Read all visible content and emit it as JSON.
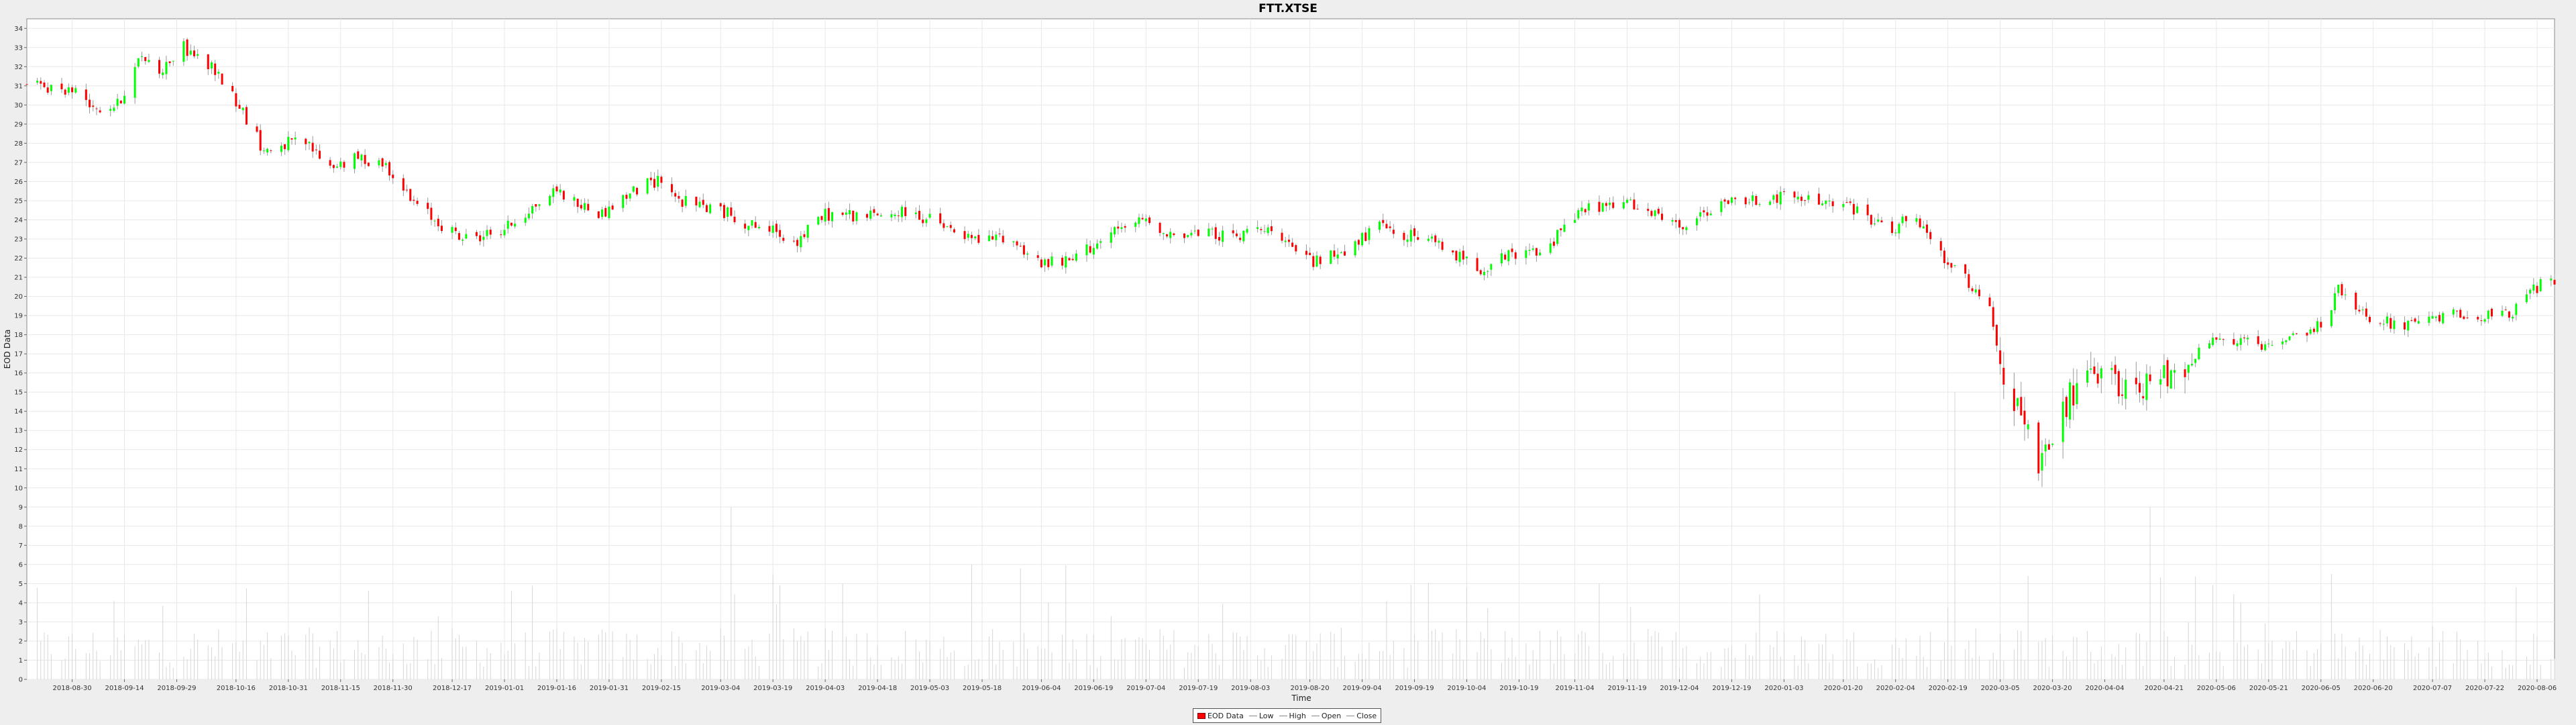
{
  "chart_data": {
    "type": "candlestick",
    "title": "FTT.XTSE",
    "xlabel": "Time",
    "ylabel": "EOD Data",
    "ylim": [
      0,
      34.5
    ],
    "yticks": [
      0,
      1,
      2,
      3,
      4,
      5,
      6,
      7,
      8,
      9,
      10,
      11,
      12,
      13,
      14,
      15,
      16,
      17,
      18,
      19,
      20,
      21,
      22,
      23,
      24,
      25,
      26,
      27,
      28,
      29,
      30,
      31,
      32,
      33,
      34
    ],
    "x_start": "2018-08-17",
    "x_end": "2020-08-11",
    "x_ticks": [
      "2018-08-30",
      "2018-09-14",
      "2018-09-29",
      "2018-10-16",
      "2018-10-31",
      "2018-11-15",
      "2018-11-30",
      "2018-12-17",
      "2019-01-01",
      "2019-01-16",
      "2019-01-31",
      "2019-02-15",
      "2019-03-04",
      "2019-03-19",
      "2019-04-03",
      "2019-04-18",
      "2019-05-03",
      "2019-05-18",
      "2019-06-04",
      "2019-06-19",
      "2019-07-04",
      "2019-07-19",
      "2019-08-03",
      "2019-08-20",
      "2019-09-04",
      "2019-09-19",
      "2019-10-04",
      "2019-10-19",
      "2019-11-04",
      "2019-11-19",
      "2019-12-04",
      "2019-12-19",
      "2020-01-03",
      "2020-01-20",
      "2020-02-04",
      "2020-02-19",
      "2020-03-05",
      "2020-03-20",
      "2020-04-04",
      "2020-04-21",
      "2020-05-06",
      "2020-05-21",
      "2020-06-05",
      "2020-06-20",
      "2020-07-07",
      "2020-07-22",
      "2020-08-06"
    ],
    "close_trend": [
      [
        "2018-08-17",
        31.0
      ],
      [
        "2018-08-30",
        30.8
      ],
      [
        "2018-09-07",
        29.8
      ],
      [
        "2018-09-12",
        30.0
      ],
      [
        "2018-09-19",
        32.6
      ],
      [
        "2018-09-24",
        31.8
      ],
      [
        "2018-10-01",
        33.0
      ],
      [
        "2018-10-10",
        31.8
      ],
      [
        "2018-10-17",
        30.0
      ],
      [
        "2018-10-24",
        27.6
      ],
      [
        "2018-10-31",
        28.0
      ],
      [
        "2018-11-05",
        28.0
      ],
      [
        "2018-11-12",
        26.8
      ],
      [
        "2018-11-20",
        27.2
      ],
      [
        "2018-11-27",
        27.0
      ],
      [
        "2018-11-30",
        26.5
      ],
      [
        "2018-12-05",
        25.0
      ],
      [
        "2018-12-12",
        24.0
      ],
      [
        "2018-12-20",
        23.0
      ],
      [
        "2018-12-31",
        23.4
      ],
      [
        "2019-01-08",
        24.5
      ],
      [
        "2019-01-16",
        25.6
      ],
      [
        "2019-01-22",
        24.8
      ],
      [
        "2019-01-29",
        24.3
      ],
      [
        "2019-02-06",
        25.4
      ],
      [
        "2019-02-15",
        26.2
      ],
      [
        "2019-02-20",
        25.0
      ],
      [
        "2019-03-04",
        24.5
      ],
      [
        "2019-03-12",
        23.8
      ],
      [
        "2019-03-19",
        23.4
      ],
      [
        "2019-03-26",
        22.9
      ],
      [
        "2019-04-03",
        24.3
      ],
      [
        "2019-04-18",
        24.2
      ],
      [
        "2019-04-26",
        24.4
      ],
      [
        "2019-05-03",
        24.0
      ],
      [
        "2019-05-10",
        23.3
      ],
      [
        "2019-05-18",
        22.8
      ],
      [
        "2019-05-25",
        23.2
      ],
      [
        "2019-06-04",
        21.7
      ],
      [
        "2019-06-12",
        21.8
      ],
      [
        "2019-06-19",
        22.7
      ],
      [
        "2019-06-28",
        23.6
      ],
      [
        "2019-07-04",
        24.0
      ],
      [
        "2019-07-12",
        23.2
      ],
      [
        "2019-07-24",
        23.3
      ],
      [
        "2019-07-30",
        23.0
      ],
      [
        "2019-08-06",
        23.8
      ],
      [
        "2019-08-14",
        22.5
      ],
      [
        "2019-08-22",
        21.8
      ],
      [
        "2019-09-01",
        22.6
      ],
      [
        "2019-09-08",
        23.6
      ],
      [
        "2019-09-15",
        23.3
      ],
      [
        "2019-09-22",
        23.0
      ],
      [
        "2019-10-01",
        22.2
      ],
      [
        "2019-10-08",
        21.5
      ],
      [
        "2019-10-19",
        22.3
      ],
      [
        "2019-10-27",
        22.2
      ],
      [
        "2019-11-01",
        24.0
      ],
      [
        "2019-11-08",
        24.6
      ],
      [
        "2019-11-19",
        24.8
      ],
      [
        "2019-12-04",
        23.6
      ],
      [
        "2019-12-19",
        25.0
      ],
      [
        "2020-01-03",
        25.2
      ],
      [
        "2020-01-20",
        24.8
      ],
      [
        "2020-01-28",
        24.0
      ],
      [
        "2020-02-04",
        23.5
      ],
      [
        "2020-02-08",
        24.2
      ],
      [
        "2020-02-12",
        23.4
      ],
      [
        "2020-02-19",
        21.8
      ],
      [
        "2020-02-26",
        20.5
      ],
      [
        "2020-03-02",
        19.5
      ],
      [
        "2020-03-06",
        15.8
      ],
      [
        "2020-03-11",
        13.5
      ],
      [
        "2020-03-17",
        11.0
      ],
      [
        "2020-03-25",
        14.8
      ],
      [
        "2020-04-01",
        15.5
      ],
      [
        "2020-04-07",
        15.7
      ],
      [
        "2020-04-14",
        15.0
      ],
      [
        "2020-04-21",
        15.9
      ],
      [
        "2020-04-28",
        16.8
      ],
      [
        "2020-05-06",
        17.8
      ],
      [
        "2020-05-13",
        17.6
      ],
      [
        "2020-05-21",
        17.2
      ],
      [
        "2020-05-28",
        17.8
      ],
      [
        "2020-06-05",
        18.6
      ],
      [
        "2020-06-10",
        20.3
      ],
      [
        "2020-06-16",
        19.2
      ],
      [
        "2020-06-25",
        18.6
      ],
      [
        "2020-07-02",
        18.5
      ],
      [
        "2020-07-08",
        18.7
      ],
      [
        "2020-07-15",
        19.2
      ],
      [
        "2020-07-22",
        18.9
      ],
      [
        "2020-07-29",
        19.0
      ],
      [
        "2020-08-04",
        20.2
      ],
      [
        "2020-08-08",
        20.8
      ],
      [
        "2020-08-11",
        20.6
      ]
    ],
    "volume_scale_max": 34.5,
    "volume_spikes": [
      [
        "2019-03-07",
        9.0
      ],
      [
        "2019-03-19",
        5.5
      ],
      [
        "2019-05-15",
        6.0
      ],
      [
        "2019-05-29",
        5.8
      ],
      [
        "2019-06-06",
        4.0
      ],
      [
        "2020-02-21",
        15.0
      ],
      [
        "2020-03-14",
        4.0
      ],
      [
        "2020-04-17",
        9.0
      ],
      [
        "2020-06-08",
        5.5
      ]
    ],
    "volume_typical": 1.5,
    "colors": {
      "up": "#00ff00",
      "down": "#ff0000",
      "volume": "#d6d6d6",
      "grid": "#e8e8e8",
      "plot_bg": "#ffffff"
    },
    "legend": {
      "placement": "bottom-center",
      "items": [
        "EOD Data",
        "Low",
        "High",
        "Open",
        "Close"
      ]
    }
  }
}
